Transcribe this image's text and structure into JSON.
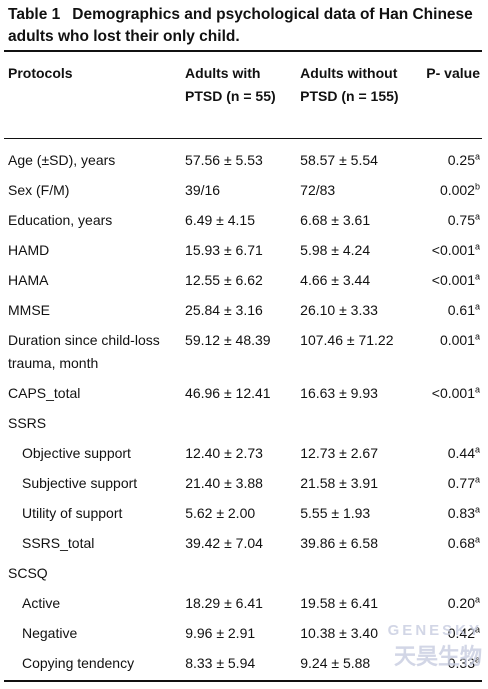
{
  "table": {
    "caption": "Table 1",
    "title": "Demographics and psychological data of Han Chinese adults who lost their only child.",
    "header": [
      "Protocols",
      "Adults with PTSD (n = 55)",
      "Adults without PTSD (n = 155)",
      "P- value"
    ],
    "rows": [
      {
        "label": "Age (±SD), years",
        "with": "57.56 ± 5.53",
        "without": "58.57 ± 5.54",
        "p": "0.25",
        "note": "a"
      },
      {
        "label": "Sex (F/M)",
        "with": "39/16",
        "without": "72/83",
        "p": "0.002",
        "note": "b"
      },
      {
        "label": "Education, years",
        "with": "6.49 ± 4.15",
        "without": "6.68 ± 3.61",
        "p": "0.75",
        "note": "a"
      },
      {
        "label": "HAMD",
        "with": "15.93 ± 6.71",
        "without": "5.98 ± 4.24",
        "p": "<0.001",
        "note": "a"
      },
      {
        "label": "HAMA",
        "with": "12.55 ± 6.62",
        "without": "4.66 ± 3.44",
        "p": "<0.001",
        "note": "a"
      },
      {
        "label": "MMSE",
        "with": "25.84 ± 3.16",
        "without": "26.10 ± 3.33",
        "p": "0.61",
        "note": "a"
      },
      {
        "label": "Duration since child-loss trauma, month",
        "with": "59.12 ± 48.39",
        "without": "107.46 ± 71.22",
        "p": "0.001",
        "note": "a"
      },
      {
        "label": "CAPS_total",
        "with": "46.96 ± 12.41",
        "without": "16.63 ± 9.93",
        "p": "<0.001",
        "note": "a"
      },
      {
        "label": "SSRS",
        "rows": [
          {
            "label": "Objective support",
            "with": "12.40 ± 2.73",
            "without": "12.73 ± 2.67",
            "p": "0.44",
            "note": "a"
          },
          {
            "label": "Subjective support",
            "with": "21.40 ± 3.88",
            "without": "21.58 ± 3.91",
            "p": "0.77",
            "note": "a"
          },
          {
            "label": "Utility of support",
            "with": "5.62 ± 2.00",
            "without": "5.55 ± 1.93",
            "p": "0.83",
            "note": "a"
          },
          {
            "label": "SSRS_total",
            "with": "39.42 ± 7.04",
            "without": "39.86 ± 6.58",
            "p": "0.68",
            "note": "a"
          }
        ]
      },
      {
        "label": "SCSQ",
        "rows": [
          {
            "label": "Active",
            "with": "18.29 ± 6.41",
            "without": "19.58 ± 6.41",
            "p": "0.20",
            "note": "a"
          },
          {
            "label": "Negative",
            "with": "9.96 ± 2.91",
            "without": "10.38 ± 3.40",
            "p": "0.42",
            "note": "a"
          },
          {
            "label": "Copying tendency",
            "with": "8.33 ± 5.94",
            "without": "9.24 ± 5.88",
            "p": "0.33",
            "note": "a"
          }
        ]
      }
    ]
  },
  "watermark": {
    "brand": "GENESKY",
    "name": "天昊生物"
  }
}
